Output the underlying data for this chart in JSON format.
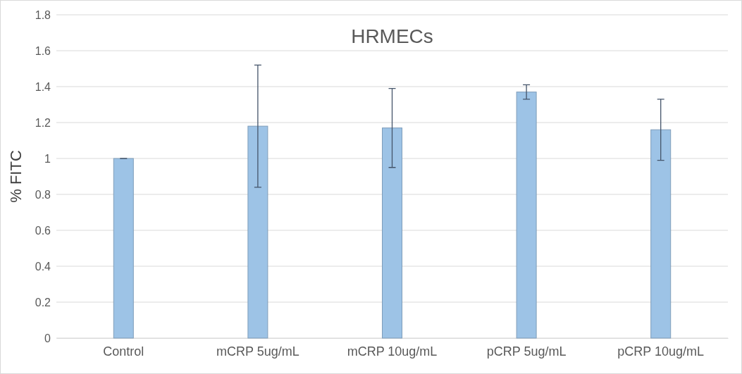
{
  "chart_data": {
    "type": "bar",
    "title": "HRMECs",
    "ylabel": "% FITC",
    "categories": [
      "Control",
      "mCRP 5ug/mL",
      "mCRP 10ug/mL",
      "pCRP 5ug/mL",
      "pCRP 10ug/mL"
    ],
    "values": [
      1.0,
      1.18,
      1.17,
      1.37,
      1.16
    ],
    "errors": [
      0,
      0.34,
      0.22,
      0.04,
      0.17
    ],
    "color": "#9dc3e6",
    "ylim": [
      0,
      1.8
    ],
    "yticks": [
      0,
      0.2,
      0.4,
      0.6,
      0.8,
      1,
      1.2,
      1.4,
      1.6,
      1.8
    ],
    "grid": "y"
  }
}
